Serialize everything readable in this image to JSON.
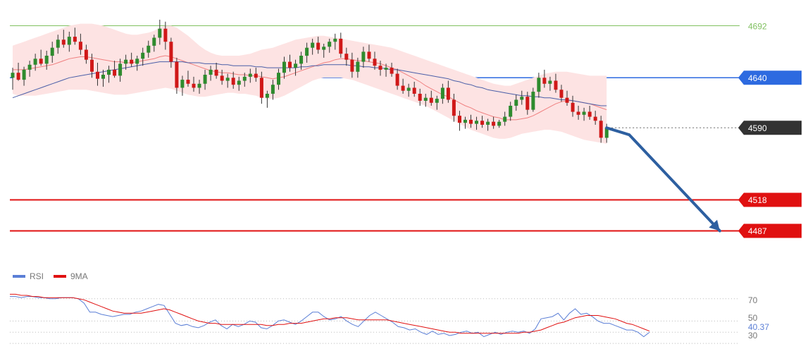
{
  "chart_data": [
    {
      "type": "candlestick",
      "title": "",
      "ylim": [
        4450,
        4705
      ],
      "grid": false,
      "bollinger_bands": true,
      "moving_averages": [
        {
          "color": "#f08080"
        },
        {
          "color": "#4a5fa8"
        }
      ],
      "candles": [
        [
          4640,
          4650,
          4628,
          4645
        ],
        [
          4645,
          4655,
          4637,
          4638
        ],
        [
          4638,
          4651,
          4632,
          4648
        ],
        [
          4648,
          4657,
          4641,
          4653
        ],
        [
          4653,
          4664,
          4647,
          4659
        ],
        [
          4659,
          4668,
          4652,
          4654
        ],
        [
          4654,
          4667,
          4648,
          4662
        ],
        [
          4662,
          4676,
          4655,
          4670
        ],
        [
          4670,
          4683,
          4664,
          4678
        ],
        [
          4678,
          4688,
          4670,
          4673
        ],
        [
          4673,
          4686,
          4666,
          4681
        ],
        [
          4681,
          4690,
          4673,
          4676
        ],
        [
          4676,
          4684,
          4663,
          4668
        ],
        [
          4668,
          4673,
          4654,
          4658
        ],
        [
          4658,
          4664,
          4640,
          4646
        ],
        [
          4646,
          4655,
          4632,
          4639
        ],
        [
          4639,
          4648,
          4631,
          4643
        ],
        [
          4643,
          4652,
          4635,
          4648
        ],
        [
          4648,
          4657,
          4640,
          4642
        ],
        [
          4642,
          4659,
          4636,
          4654
        ],
        [
          4654,
          4663,
          4648,
          4658
        ],
        [
          4658,
          4665,
          4651,
          4654
        ],
        [
          4654,
          4662,
          4647,
          4659
        ],
        [
          4659,
          4670,
          4652,
          4665
        ],
        [
          4665,
          4677,
          4660,
          4672
        ],
        [
          4672,
          4683,
          4666,
          4680
        ],
        [
          4680,
          4698,
          4673,
          4689
        ],
        [
          4689,
          4696,
          4668,
          4676
        ],
        [
          4676,
          4680,
          4650,
          4656
        ],
        [
          4656,
          4660,
          4624,
          4630
        ],
        [
          4630,
          4642,
          4622,
          4638
        ],
        [
          4638,
          4647,
          4631,
          4634
        ],
        [
          4634,
          4641,
          4626,
          4630
        ],
        [
          4630,
          4638,
          4624,
          4634
        ],
        [
          4634,
          4648,
          4628,
          4643
        ],
        [
          4643,
          4652,
          4637,
          4648
        ],
        [
          4648,
          4655,
          4639,
          4642
        ],
        [
          4642,
          4648,
          4633,
          4637
        ],
        [
          4637,
          4644,
          4630,
          4640
        ],
        [
          4640,
          4646,
          4629,
          4633
        ],
        [
          4633,
          4641,
          4627,
          4637
        ],
        [
          4637,
          4645,
          4631,
          4641
        ],
        [
          4641,
          4649,
          4635,
          4644
        ],
        [
          4644,
          4650,
          4636,
          4640
        ],
        [
          4640,
          4646,
          4614,
          4620
        ],
        [
          4620,
          4627,
          4610,
          4624
        ],
        [
          4624,
          4638,
          4618,
          4633
        ],
        [
          4633,
          4649,
          4628,
          4645
        ],
        [
          4645,
          4661,
          4639,
          4656
        ],
        [
          4656,
          4663,
          4646,
          4650
        ],
        [
          4650,
          4658,
          4642,
          4654
        ],
        [
          4654,
          4666,
          4648,
          4662
        ],
        [
          4662,
          4675,
          4655,
          4670
        ],
        [
          4670,
          4679,
          4663,
          4675
        ],
        [
          4675,
          4681,
          4664,
          4668
        ],
        [
          4668,
          4674,
          4660,
          4671
        ],
        [
          4671,
          4679,
          4665,
          4676
        ],
        [
          4676,
          4684,
          4668,
          4679
        ],
        [
          4679,
          4685,
          4660,
          4664
        ],
        [
          4664,
          4670,
          4652,
          4658
        ],
        [
          4658,
          4665,
          4640,
          4646
        ],
        [
          4646,
          4660,
          4640,
          4656
        ],
        [
          4656,
          4671,
          4650,
          4666
        ],
        [
          4666,
          4673,
          4656,
          4659
        ],
        [
          4659,
          4666,
          4648,
          4652
        ],
        [
          4652,
          4657,
          4642,
          4648
        ],
        [
          4648,
          4654,
          4641,
          4650
        ],
        [
          4650,
          4655,
          4641,
          4644
        ],
        [
          4644,
          4649,
          4628,
          4632
        ],
        [
          4632,
          4639,
          4624,
          4627
        ],
        [
          4627,
          4634,
          4621,
          4630
        ],
        [
          4630,
          4636,
          4621,
          4624
        ],
        [
          4624,
          4629,
          4612,
          4617
        ],
        [
          4617,
          4624,
          4611,
          4620
        ],
        [
          4620,
          4627,
          4612,
          4615
        ],
        [
          4615,
          4622,
          4608,
          4619
        ],
        [
          4619,
          4634,
          4614,
          4630
        ],
        [
          4630,
          4637,
          4615,
          4618
        ],
        [
          4618,
          4624,
          4596,
          4602
        ],
        [
          4602,
          4607,
          4587,
          4595
        ],
        [
          4595,
          4601,
          4589,
          4598
        ],
        [
          4598,
          4603,
          4590,
          4594
        ],
        [
          4594,
          4601,
          4588,
          4597
        ],
        [
          4597,
          4602,
          4590,
          4593
        ],
        [
          4593,
          4599,
          4587,
          4596
        ],
        [
          4596,
          4601,
          4589,
          4592
        ],
        [
          4592,
          4598,
          4590,
          4596
        ],
        [
          4596,
          4606,
          4592,
          4601
        ],
        [
          4601,
          4616,
          4597,
          4612
        ],
        [
          4612,
          4623,
          4607,
          4618
        ],
        [
          4618,
          4627,
          4613,
          4621
        ],
        [
          4621,
          4626,
          4603,
          4608
        ],
        [
          4608,
          4630,
          4606,
          4626
        ],
        [
          4626,
          4645,
          4620,
          4640
        ],
        [
          4640,
          4648,
          4630,
          4634
        ],
        [
          4634,
          4641,
          4627,
          4637
        ],
        [
          4637,
          4644,
          4625,
          4628
        ],
        [
          4628,
          4633,
          4616,
          4620
        ],
        [
          4620,
          4627,
          4612,
          4615
        ],
        [
          4615,
          4622,
          4601,
          4606
        ],
        [
          4606,
          4612,
          4598,
          4603
        ],
        [
          4603,
          4610,
          4597,
          4606
        ],
        [
          4606,
          4612,
          4598,
          4601
        ],
        [
          4601,
          4607,
          4593,
          4597
        ],
        [
          4597,
          4602,
          4575,
          4580
        ],
        [
          4580,
          4594,
          4575,
          4590
        ]
      ],
      "sma_fast": [
        4648,
        4648,
        4648,
        4649,
        4650,
        4651,
        4652,
        4653,
        4655,
        4657,
        4659,
        4660,
        4661,
        4661,
        4660,
        4659,
        4658,
        4657,
        4656,
        4656,
        4655,
        4655,
        4656,
        4657,
        4658,
        4659,
        4661,
        4662,
        4661,
        4659,
        4657,
        4655,
        4653,
        4651,
        4649,
        4647,
        4646,
        4645,
        4645,
        4644,
        4643,
        4643,
        4642,
        4642,
        4641,
        4640,
        4639,
        4640,
        4641,
        4643,
        4645,
        4647,
        4649,
        4651,
        4653,
        4655,
        4656,
        4658,
        4659,
        4659,
        4658,
        4657,
        4657,
        4656,
        4655,
        4654,
        4652,
        4650,
        4648,
        4645,
        4642,
        4639,
        4636,
        4632,
        4629,
        4626,
        4623,
        4621,
        4618,
        4615,
        4612,
        4610,
        4607,
        4605,
        4603,
        4601,
        4600,
        4598,
        4598,
        4598,
        4599,
        4600,
        4602,
        4605,
        4608,
        4611,
        4614,
        4616,
        4617,
        4617,
        4616,
        4615,
        4614,
        4612,
        4610,
        4608
      ],
      "sma_slow": [
        4620,
        4622,
        4624,
        4626,
        4628,
        4630,
        4632,
        4634,
        4636,
        4638,
        4640,
        4641,
        4642,
        4643,
        4644,
        4645,
        4646,
        4647,
        4648,
        4649,
        4650,
        4651,
        4652,
        4653,
        4654,
        4655,
        4656,
        4656,
        4656,
        4656,
        4656,
        4655,
        4655,
        4655,
        4654,
        4654,
        4654,
        4653,
        4653,
        4652,
        4652,
        4652,
        4652,
        4651,
        4651,
        4650,
        4650,
        4650,
        4650,
        4650,
        4650,
        4651,
        4651,
        4652,
        4652,
        4653,
        4653,
        4653,
        4653,
        4653,
        4652,
        4652,
        4651,
        4651,
        4650,
        4650,
        4649,
        4648,
        4648,
        4647,
        4646,
        4645,
        4644,
        4643,
        4642,
        4641,
        4640,
        4639,
        4637,
        4636,
        4634,
        4633,
        4631,
        4630,
        4628,
        4627,
        4626,
        4625,
        4624,
        4623,
        4622,
        4622,
        4621,
        4621,
        4620,
        4620,
        4619,
        4618,
        4618,
        4617,
        4616,
        4615,
        4614,
        4613,
        4612,
        4612
      ],
      "bb_upper": [
        4672,
        4674,
        4676,
        4678,
        4680,
        4682,
        4684,
        4686,
        4688,
        4690,
        4692,
        4693,
        4694,
        4694,
        4694,
        4693,
        4692,
        4690,
        4688,
        4686,
        4684,
        4683,
        4683,
        4684,
        4685,
        4687,
        4690,
        4692,
        4692,
        4690,
        4686,
        4682,
        4677,
        4672,
        4668,
        4665,
        4663,
        4662,
        4662,
        4662,
        4662,
        4663,
        4664,
        4666,
        4668,
        4669,
        4670,
        4672,
        4674,
        4676,
        4678,
        4679,
        4680,
        4681,
        4682,
        4682,
        4681,
        4680,
        4679,
        4678,
        4677,
        4676,
        4675,
        4674,
        4673,
        4672,
        4671,
        4670,
        4668,
        4666,
        4664,
        4662,
        4660,
        4658,
        4656,
        4654,
        4652,
        4650,
        4648,
        4646,
        4644,
        4642,
        4640,
        4638,
        4636,
        4634,
        4633,
        4632,
        4632,
        4634,
        4636,
        4638,
        4640,
        4642,
        4644,
        4645,
        4646,
        4646,
        4646,
        4645,
        4644,
        4643,
        4642,
        4642,
        4642,
        4642
      ],
      "bb_lower": [
        4624,
        4622,
        4622,
        4622,
        4622,
        4623,
        4624,
        4625,
        4626,
        4627,
        4628,
        4628,
        4628,
        4628,
        4627,
        4626,
        4625,
        4624,
        4623,
        4623,
        4623,
        4624,
        4625,
        4626,
        4627,
        4628,
        4629,
        4630,
        4629,
        4627,
        4625,
        4623,
        4622,
        4621,
        4621,
        4622,
        4623,
        4624,
        4625,
        4625,
        4624,
        4624,
        4623,
        4622,
        4620,
        4619,
        4619,
        4620,
        4622,
        4625,
        4628,
        4631,
        4634,
        4637,
        4639,
        4640,
        4640,
        4640,
        4640,
        4639,
        4638,
        4636,
        4634,
        4632,
        4630,
        4628,
        4626,
        4624,
        4622,
        4620,
        4618,
        4616,
        4614,
        4612,
        4609,
        4606,
        4603,
        4600,
        4597,
        4594,
        4591,
        4588,
        4586,
        4584,
        4582,
        4580,
        4579,
        4579,
        4580,
        4582,
        4584,
        4585,
        4586,
        4587,
        4588,
        4588,
        4587,
        4586,
        4584,
        4582,
        4580,
        4578,
        4577,
        4576,
        4575,
        4574
      ],
      "levels": [
        {
          "value": 4692,
          "label": "4692",
          "kind": "resistance",
          "color": "#80c060"
        },
        {
          "value": 4640,
          "label": "4640",
          "kind": "pivot",
          "color": "#2d6ae0"
        },
        {
          "value": 4590,
          "label": "4590",
          "kind": "current",
          "color": "#333333"
        },
        {
          "value": 4518,
          "label": "4518",
          "kind": "support",
          "color": "#e01010"
        },
        {
          "value": 4487,
          "label": "4487",
          "kind": "support",
          "color": "#e01010"
        }
      ],
      "forecast_arrow": {
        "color": "#2d5fa0",
        "path": [
          [
            105,
            4590
          ],
          [
            109,
            4583
          ],
          [
            125,
            4487
          ]
        ]
      },
      "x_extent": 130
    },
    {
      "type": "line",
      "title": "",
      "ylim": [
        25,
        85
      ],
      "legend": [
        {
          "name": "RSI",
          "color": "#5b7fd6"
        },
        {
          "name": "9MA",
          "color": "#e01010"
        }
      ],
      "y_ticks": [
        "70",
        "50",
        "30"
      ],
      "current_value_label": "40.37",
      "rsi": [
        72,
        72,
        71,
        72,
        72,
        71,
        71,
        70,
        70,
        71,
        71,
        71,
        70,
        66,
        58,
        58,
        56,
        55,
        54,
        55,
        56,
        56,
        58,
        59,
        61,
        63,
        65,
        64,
        56,
        48,
        46,
        47,
        45,
        44,
        46,
        49,
        51,
        46,
        43,
        47,
        45,
        47,
        50,
        49,
        44,
        43,
        46,
        50,
        51,
        49,
        47,
        50,
        54,
        58,
        58,
        54,
        51,
        52,
        54,
        50,
        47,
        45,
        50,
        55,
        58,
        55,
        52,
        49,
        45,
        44,
        42,
        43,
        40,
        38,
        41,
        38,
        39,
        37,
        38,
        40,
        41,
        39,
        40,
        36,
        38,
        40,
        38,
        40,
        41,
        40,
        41,
        39,
        43,
        52,
        53,
        54,
        57,
        51,
        57,
        61,
        56,
        57,
        54,
        50,
        48,
        48,
        46,
        44,
        42,
        42,
        40,
        36,
        40
      ],
      "ma9": [
        74,
        74,
        73,
        73,
        72,
        72,
        71,
        71,
        71,
        71,
        71,
        71,
        70,
        69,
        67,
        65,
        63,
        61,
        59,
        58,
        57,
        57,
        57,
        57,
        58,
        59,
        60,
        61,
        60,
        58,
        56,
        54,
        52,
        50,
        49,
        48,
        48,
        47,
        47,
        47,
        47,
        47,
        47,
        47,
        47,
        46,
        46,
        47,
        47,
        48,
        48,
        48,
        49,
        50,
        51,
        52,
        52,
        53,
        53,
        53,
        52,
        51,
        51,
        51,
        51,
        51,
        51,
        50,
        49,
        48,
        47,
        46,
        45,
        44,
        43,
        42,
        41,
        40,
        40,
        39,
        39,
        39,
        39,
        39,
        39,
        39,
        39,
        39,
        39,
        39,
        40,
        40,
        41,
        42,
        44,
        46,
        48,
        49,
        51,
        53,
        54,
        55,
        55,
        55,
        54,
        53,
        52,
        50,
        48,
        47,
        45,
        43,
        41
      ]
    }
  ]
}
